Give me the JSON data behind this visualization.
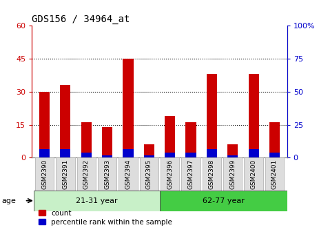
{
  "title": "GDS156 / 34964_at",
  "categories": [
    "GSM2390",
    "GSM2391",
    "GSM2392",
    "GSM2393",
    "GSM2394",
    "GSM2395",
    "GSM2396",
    "GSM2397",
    "GSM2398",
    "GSM2399",
    "GSM2400",
    "GSM2401"
  ],
  "count_values": [
    30,
    33,
    16,
    14,
    45,
    6,
    19,
    16,
    38,
    6,
    38,
    16
  ],
  "percentile_values": [
    4,
    4,
    2.5,
    1,
    4,
    1,
    2.5,
    2.5,
    4,
    1,
    4,
    2.5
  ],
  "groups": [
    {
      "label": "21-31 year",
      "start": 0,
      "end": 6
    },
    {
      "label": "62-77 year",
      "start": 6,
      "end": 12
    }
  ],
  "bar_width": 0.5,
  "ylim_left": [
    0,
    60
  ],
  "ylim_right": [
    0,
    100
  ],
  "yticks_left": [
    0,
    15,
    30,
    45,
    60
  ],
  "yticks_right": [
    0,
    25,
    50,
    75,
    100
  ],
  "left_tick_color": "#cc0000",
  "right_tick_color": "#0000cc",
  "bar_color_red": "#cc0000",
  "bar_color_blue": "#0000cc",
  "legend_count_label": "count",
  "legend_pct_label": "percentile rank within the sample",
  "age_label": "age",
  "group_color_1": "#c8f0c8",
  "group_color_2": "#44cc44",
  "dotted_levels": [
    15,
    30,
    45
  ],
  "gridline_color": "#000000"
}
